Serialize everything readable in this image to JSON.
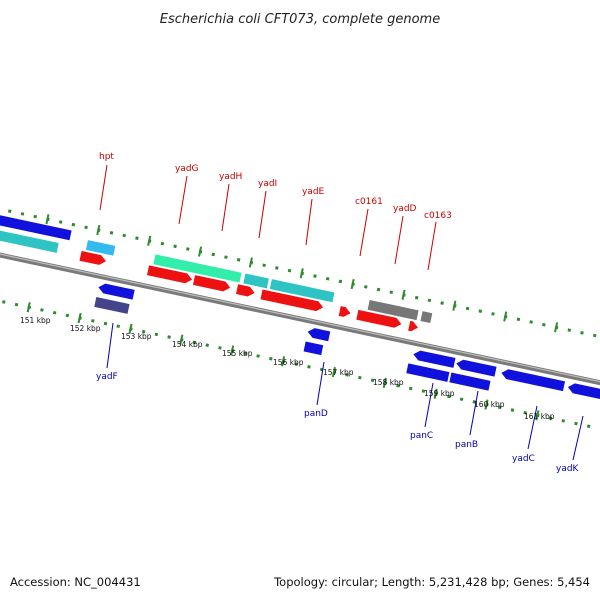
{
  "title": "Escherichia coli CFT073, complete genome",
  "footer": {
    "accession": "Accession: NC_004431",
    "summary": "Topology: circular; Length: 5,231,428 bp; Genes: 5,454"
  },
  "colors": {
    "forward_label": "#cc0000",
    "reverse_label": "#0000bb",
    "backbone": "#808080",
    "dots": "#2e8b2e",
    "red": "#ee1111",
    "blue": "#1111dd",
    "cyan": "#2ec4c4",
    "mint": "#33eeaa",
    "skyblue": "#33bbee",
    "gray": "#777777",
    "slate": "#44448a"
  },
  "ticks": [
    "151 kbp",
    "152 kbp",
    "153 kbp",
    "154 kbp",
    "155 kbp",
    "156 kbp",
    "157 kbp",
    "158 kbp",
    "159 kbp",
    "160 kbp",
    "161 kbp"
  ],
  "forward_labels": [
    "hpt",
    "yadG",
    "yadH",
    "yadI",
    "yadE",
    "c0161",
    "yadD",
    "c0163"
  ],
  "reverse_labels": [
    "yadF",
    "panD",
    "panC",
    "panB",
    "yadC",
    "yadK"
  ]
}
